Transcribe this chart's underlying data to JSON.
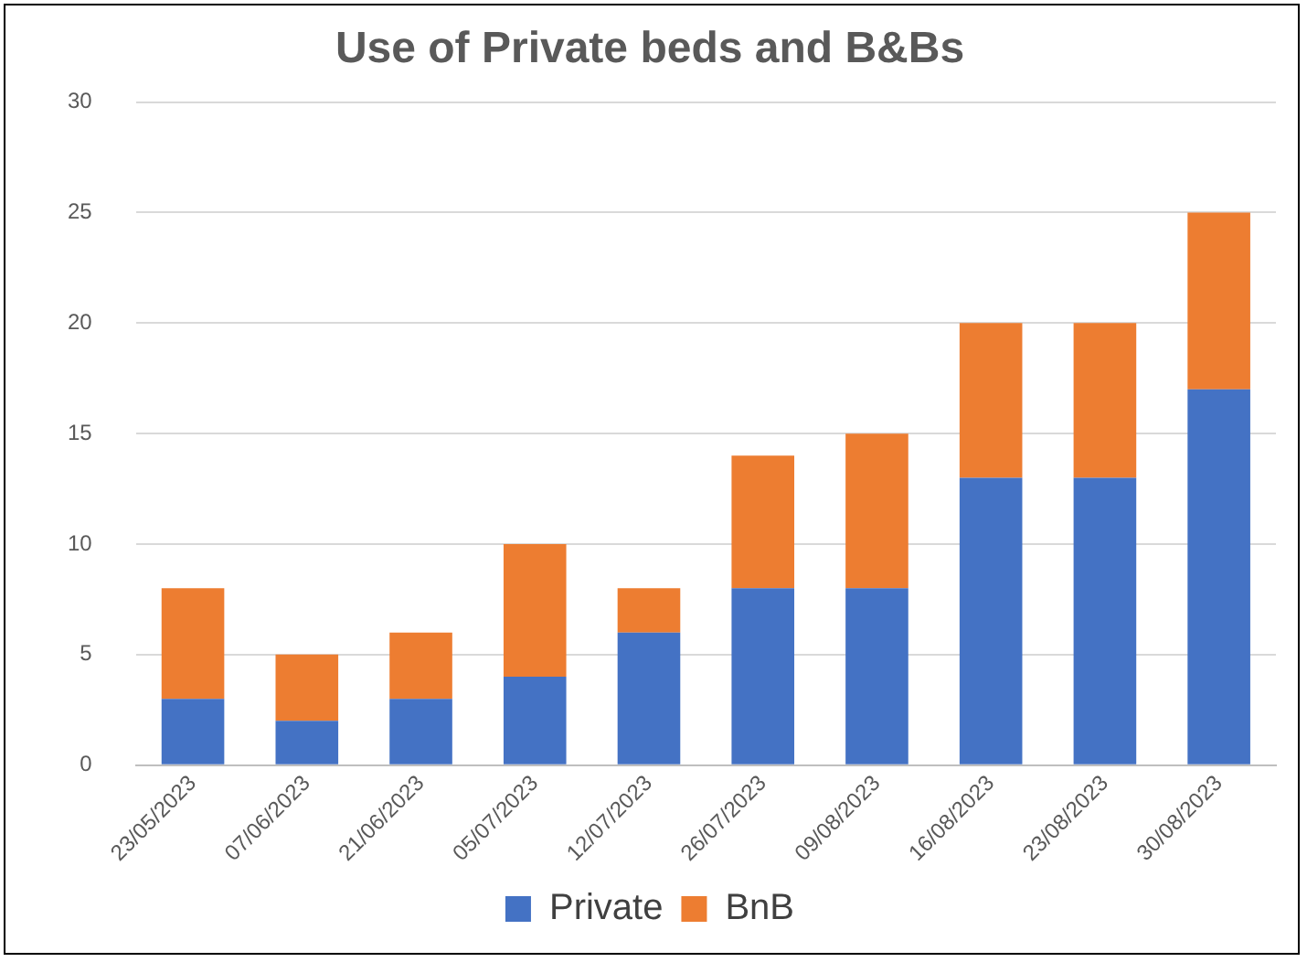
{
  "chart_data": {
    "type": "bar",
    "title": "Use of Private beds and B&Bs",
    "categories": [
      "23/05/2023",
      "07/06/2023",
      "21/06/2023",
      "05/07/2023",
      "12/07/2023",
      "26/07/2023",
      "09/08/2023",
      "16/08/2023",
      "23/08/2023",
      "30/08/2023"
    ],
    "series": [
      {
        "name": "Private",
        "color": "#4472c4",
        "values": [
          3,
          2,
          3,
          4,
          6,
          8,
          8,
          13,
          13,
          17
        ]
      },
      {
        "name": "BnB",
        "color": "#ed7d31",
        "values": [
          5,
          3,
          3,
          6,
          2,
          6,
          7,
          7,
          7,
          8
        ]
      }
    ],
    "stacked": true,
    "ylim": [
      0,
      30
    ],
    "yticks": [
      0,
      5,
      10,
      15,
      20,
      25,
      30
    ],
    "grid": "y",
    "legend": "bottom"
  }
}
